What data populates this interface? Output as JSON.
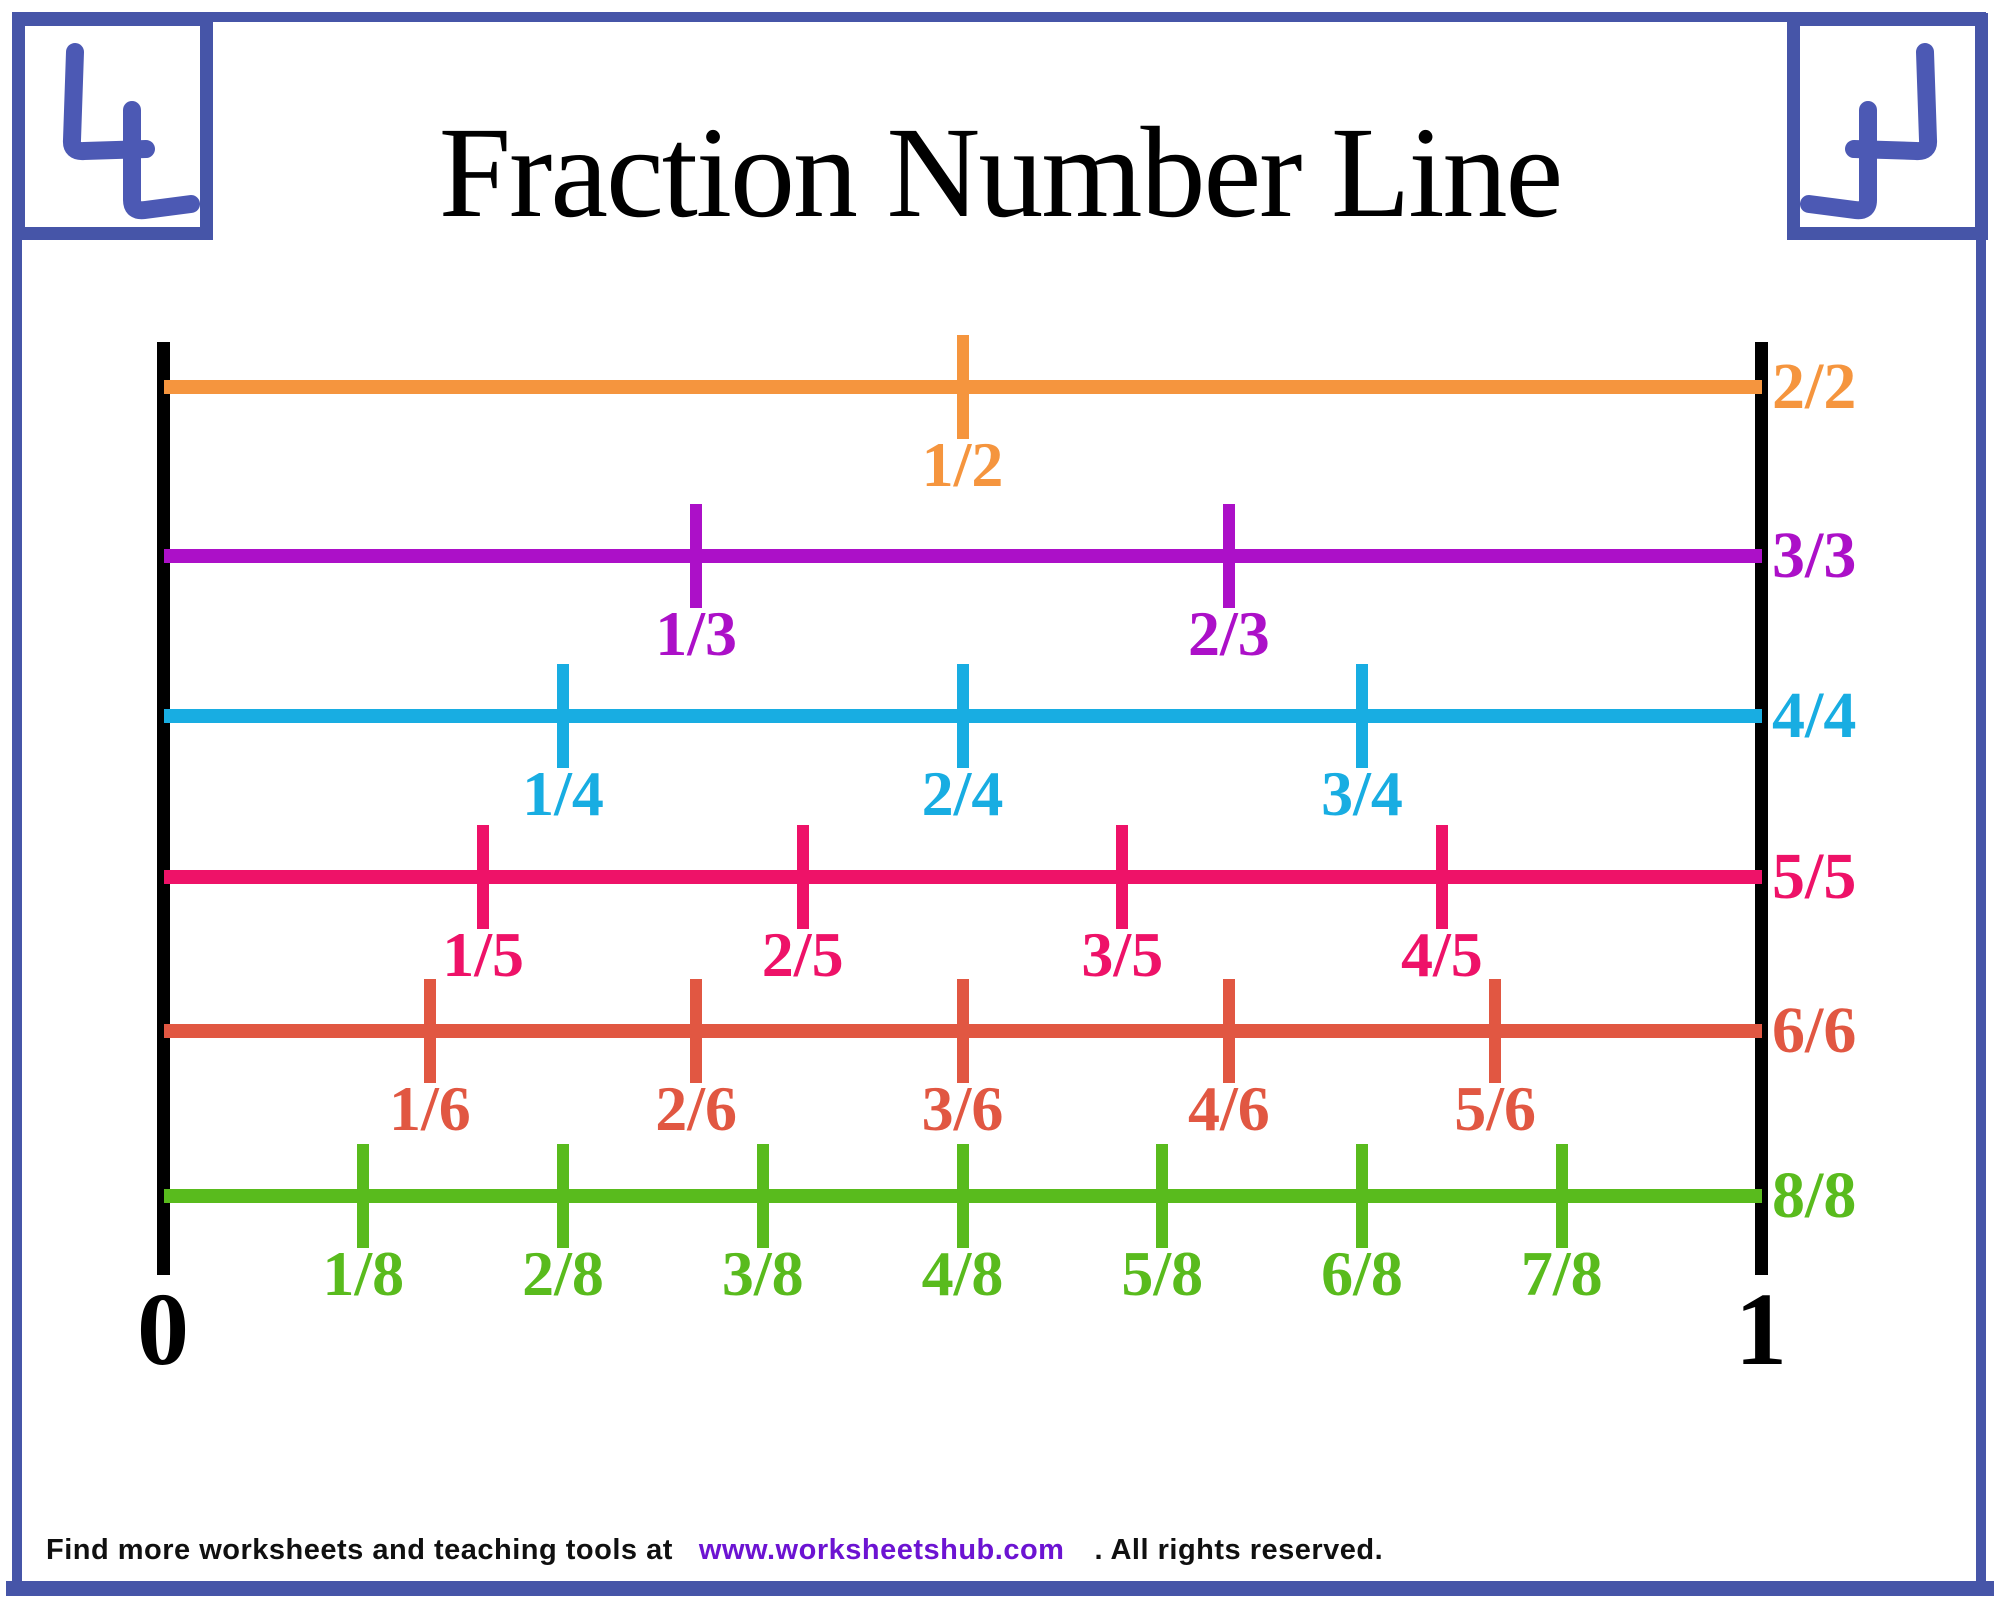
{
  "page": {
    "title": "Fraction Number Line",
    "frame_color": "#4655A8",
    "logo_glyph_color": "#4C59B4"
  },
  "number_line": {
    "start_label": "0",
    "end_label": "1",
    "axis_color": "#000000",
    "rows": [
      {
        "denominator": 2,
        "color": "#F5953E",
        "tick_labels": [
          "1/2"
        ],
        "right_label": "2/2"
      },
      {
        "denominator": 3,
        "color": "#AC10C8",
        "tick_labels": [
          "1/3",
          "2/3"
        ],
        "right_label": "3/3"
      },
      {
        "denominator": 4,
        "color": "#18ADE2",
        "tick_labels": [
          "1/4",
          "2/4",
          "3/4"
        ],
        "right_label": "4/4"
      },
      {
        "denominator": 5,
        "color": "#EE1268",
        "tick_labels": [
          "1/5",
          "2/5",
          "3/5",
          "4/5"
        ],
        "right_label": "5/5"
      },
      {
        "denominator": 6,
        "color": "#E15742",
        "tick_labels": [
          "1/6",
          "2/6",
          "3/6",
          "4/6",
          "5/6"
        ],
        "right_label": "6/6"
      },
      {
        "denominator": 8,
        "color": "#59BB1D",
        "tick_labels": [
          "1/8",
          "2/8",
          "3/8",
          "4/8",
          "5/8",
          "6/8",
          "7/8"
        ],
        "right_label": "8/8"
      }
    ]
  },
  "footer": {
    "text_before_link": "Find more worksheets and teaching tools at",
    "link": "www.worksheetshub.com",
    "text_after_link": ". All rights reserved.",
    "link_color": "#6C13D2"
  }
}
